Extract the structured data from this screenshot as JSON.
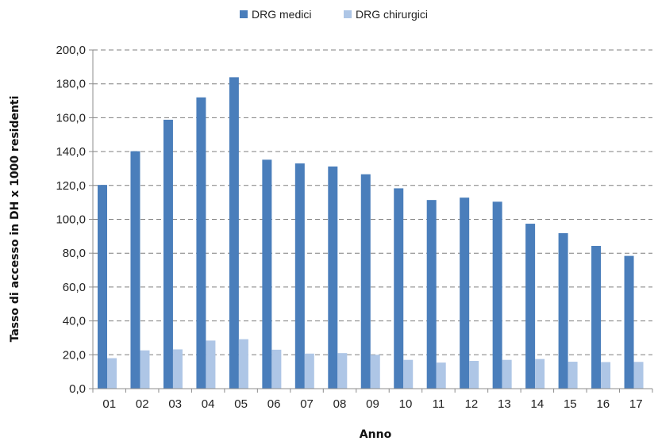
{
  "chart_data": {
    "type": "bar",
    "title": "",
    "xlabel": "Anno",
    "ylabel": "Tasso di accesso in DH x 1000 residenti",
    "categories": [
      "01",
      "02",
      "03",
      "04",
      "05",
      "06",
      "07",
      "08",
      "09",
      "10",
      "11",
      "12",
      "13",
      "14",
      "15",
      "16",
      "17"
    ],
    "series": [
      {
        "name": "DRG medici",
        "color": "#4a7ebb",
        "values": [
          120.3,
          140.2,
          158.8,
          172.0,
          183.9,
          135.2,
          133.0,
          131.2,
          126.6,
          118.3,
          111.4,
          112.8,
          110.4,
          97.4,
          91.8,
          84.3,
          78.4
        ]
      },
      {
        "name": "DRG chirurgici",
        "color": "#aec6e6",
        "values": [
          18.0,
          22.6,
          23.2,
          28.4,
          29.2,
          23.0,
          20.7,
          21.0,
          20.0,
          17.0,
          15.4,
          16.4,
          17.0,
          17.5,
          15.9,
          15.7,
          15.8
        ]
      }
    ],
    "ylim": [
      0,
      200
    ],
    "yticks": [
      "0,0",
      "20,0",
      "40,0",
      "60,0",
      "80,0",
      "100,0",
      "120,0",
      "140,0",
      "160,0",
      "180,0",
      "200,0"
    ],
    "grid": "horizontal dashed",
    "legend_position": "top-center"
  }
}
